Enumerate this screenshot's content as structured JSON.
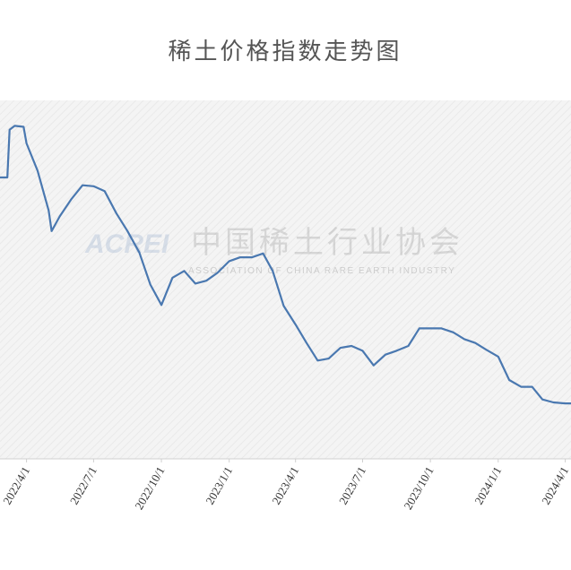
{
  "chart_data": {
    "type": "line",
    "title": "稀土价格指数走势图",
    "x": [
      "2022-02-24",
      "2022-03-06",
      "2022-03-09",
      "2022-03-16",
      "2022-03-28",
      "2022-04-01",
      "2022-04-16",
      "2022-05-01",
      "2022-05-05",
      "2022-05-16",
      "2022-06-01",
      "2022-06-16",
      "2022-07-01",
      "2022-07-16",
      "2022-08-01",
      "2022-08-16",
      "2022-09-01",
      "2022-09-16",
      "2022-10-01",
      "2022-10-16",
      "2022-11-01",
      "2022-11-16",
      "2022-12-01",
      "2022-12-16",
      "2023-01-01",
      "2023-01-16",
      "2023-02-01",
      "2023-02-16",
      "2023-03-01",
      "2023-03-16",
      "2023-04-01",
      "2023-04-16",
      "2023-05-01",
      "2023-05-16",
      "2023-06-01",
      "2023-06-16",
      "2023-07-01",
      "2023-07-16",
      "2023-08-01",
      "2023-08-16",
      "2023-09-01",
      "2023-09-16",
      "2023-10-01",
      "2023-10-16",
      "2023-11-01",
      "2023-11-16",
      "2023-12-01",
      "2023-12-16",
      "2024-01-01",
      "2024-01-16",
      "2024-02-01",
      "2024-02-16",
      "2024-03-01",
      "2024-03-16",
      "2024-04-01",
      "2024-04-10"
    ],
    "series": [
      {
        "color": "#4a78b0",
        "values": [
          389,
          389,
          438,
          442,
          441,
          424,
          396,
          355,
          334,
          349,
          367,
          381,
          380,
          375,
          352,
          334,
          312,
          279,
          258,
          286,
          293,
          280,
          283,
          291,
          303,
          307,
          307,
          311,
          293,
          257,
          238,
          219,
          201,
          203,
          214,
          216,
          211,
          196,
          207,
          211,
          216,
          234,
          234,
          234,
          230,
          223,
          219,
          212,
          205,
          181,
          174,
          174,
          161,
          158,
          157,
          157
        ]
      }
    ],
    "xlim": [
      "2022-02-24",
      "2024-04-10"
    ],
    "ylim": [
      100,
      470
    ],
    "xticks": [
      {
        "value": "2022-04-01",
        "label": "2022/4/1"
      },
      {
        "value": "2022-07-01",
        "label": "2022/7/1"
      },
      {
        "value": "2022-10-01",
        "label": "2022/10/1"
      },
      {
        "value": "2023-01-01",
        "label": "2023/1/1"
      },
      {
        "value": "2023-04-01",
        "label": "2023/4/1"
      },
      {
        "value": "2023-07-01",
        "label": "2023/7/1"
      },
      {
        "value": "2023-10-01",
        "label": "2023/10/1"
      },
      {
        "value": "2024-01-01",
        "label": "2024/1/1"
      },
      {
        "value": "2024-04-01",
        "label": "2024/4/1"
      }
    ]
  },
  "watermark": {
    "logo": "ACREI",
    "name": "中国稀土行业协会",
    "english": "ASSOCIATION OF CHINA RARE EARTH INDUSTRY"
  }
}
